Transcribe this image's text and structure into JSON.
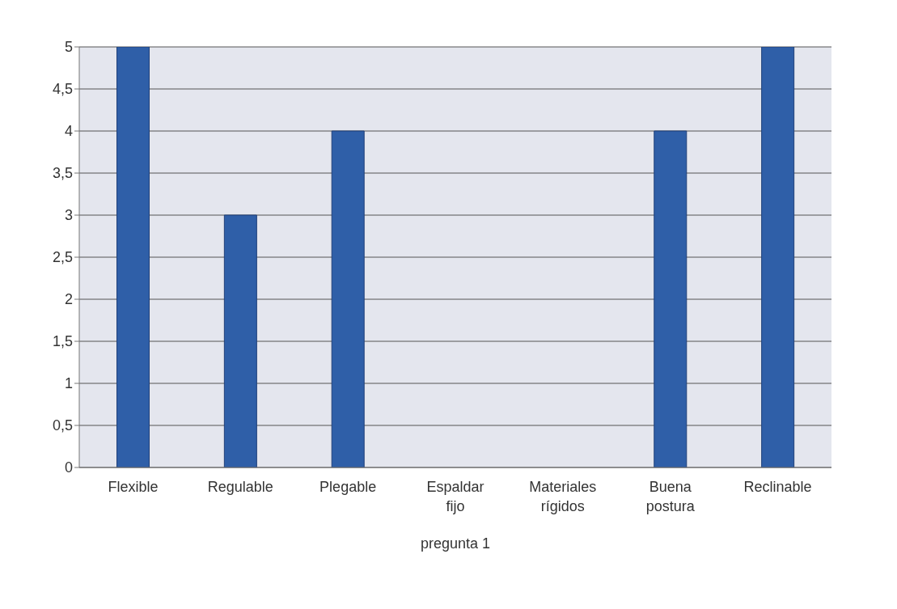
{
  "chart_data": {
    "type": "bar",
    "xlabel": "pregunta 1",
    "categories": [
      "Flexible",
      "Regulable",
      "Plegable",
      "Espaldar fijo",
      "Materiales rígidos",
      "Buena postura",
      "Reclinable"
    ],
    "values": [
      5,
      3,
      4,
      0,
      0,
      4,
      5
    ],
    "color": "#2f5fa8",
    "ylim": [
      0,
      5
    ],
    "yticks": [
      0,
      {
        "value": 0.5,
        "label": "0,5"
      },
      1,
      {
        "value": 1.5,
        "label": "1,5"
      },
      2,
      {
        "value": 2.5,
        "label": "2,5"
      },
      3,
      {
        "value": 3.5,
        "label": "3,5"
      },
      4,
      {
        "value": 4.5,
        "label": "4,5"
      },
      5
    ],
    "grid": "y"
  }
}
